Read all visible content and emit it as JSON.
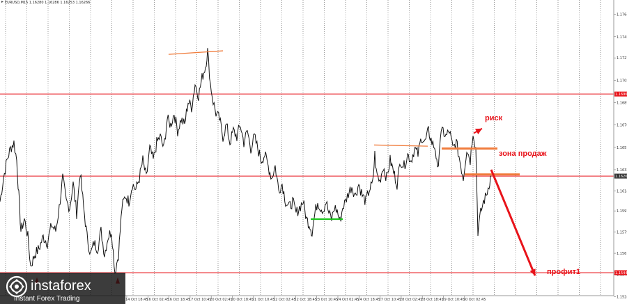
{
  "header": "EURUSD,M15  1.16280 1.16286 1.16253 1.16266",
  "chart_data": {
    "type": "line",
    "title": "",
    "symbol": "EURUSD,M15",
    "ohlc": [
      "1.16280",
      "1.16286",
      "1.16253",
      "1.16266"
    ],
    "ylim": [
      1.1525,
      1.1775
    ],
    "y_ticks": [
      "1.1764",
      "1.1745",
      "1.1727",
      "1.1708",
      "1.1689",
      "1.1670",
      "1.1651",
      "1.1632",
      "1.1614",
      "1.1597",
      "1.1579",
      "1.1561",
      "1.1543",
      "1.1524"
    ],
    "x_tick_labels": [
      "14 Oct 18:45",
      "16 Oct 02:45",
      "16 Oct 18:45",
      "17 Oct 10:45",
      "20 Oct 02:45",
      "20 Oct 18:45",
      "21 Oct 10:45",
      "22 Oct 02:45",
      "22 Oct 18:45",
      "23 Oct 10:45",
      "24 Oct 02:45",
      "24 Oct 18:45",
      "27 Oct 10:45",
      "28 Oct 02:45",
      "28 Oct 18:45",
      "29 Oct 10:45",
      "30 Oct 02:45"
    ],
    "price_tags": [
      {
        "label": "1.16963",
        "value": 1.16963,
        "kind": "level",
        "color": "#e8131a"
      },
      {
        "label": "1.16266",
        "value": 1.16266,
        "kind": "current",
        "color": "#333333"
      },
      {
        "label": "1.15445",
        "value": 1.15445,
        "kind": "level",
        "color": "#e8131a"
      }
    ],
    "horizontal_levels": [
      {
        "value": 1.16963,
        "color": "#e8131a"
      },
      {
        "value": 1.16266,
        "color": "#e8131a"
      },
      {
        "value": 1.15445,
        "color": "#e8131a"
      }
    ],
    "series": [
      {
        "color": "#111111",
        "points": [
          [
            0,
            1.1605
          ],
          [
            5,
            1.1625
          ],
          [
            10,
            1.164
          ],
          [
            15,
            1.165
          ],
          [
            20,
            1.1655
          ],
          [
            24,
            1.164
          ],
          [
            27,
            1.161
          ],
          [
            30,
            1.158
          ],
          [
            35,
            1.159
          ],
          [
            40,
            1.1575
          ],
          [
            44,
            1.155
          ],
          [
            50,
            1.156
          ],
          [
            56,
            1.1565
          ],
          [
            62,
            1.1575
          ],
          [
            68,
            1.157
          ],
          [
            74,
            1.1585
          ],
          [
            80,
            1.158
          ],
          [
            85,
            1.16
          ],
          [
            90,
            1.1625
          ],
          [
            95,
            1.1605
          ],
          [
            100,
            1.16
          ],
          [
            105,
            1.162
          ],
          [
            110,
            1.1595
          ],
          [
            115,
            1.163
          ],
          [
            120,
            1.16
          ],
          [
            125,
            1.1575
          ],
          [
            130,
            1.156
          ],
          [
            135,
            1.157
          ],
          [
            140,
            1.1565
          ],
          [
            145,
            1.158
          ],
          [
            150,
            1.156
          ],
          [
            155,
            1.1575
          ],
          [
            160,
            1.158
          ],
          [
            165,
            1.1545
          ],
          [
            170,
            1.156
          ],
          [
            175,
            1.16
          ],
          [
            180,
            1.161
          ],
          [
            185,
            1.1605
          ],
          [
            190,
            1.162
          ],
          [
            195,
            1.1615
          ],
          [
            200,
            1.1625
          ],
          [
            205,
            1.164
          ],
          [
            210,
            1.1625
          ],
          [
            215,
            1.165
          ],
          [
            220,
            1.164
          ],
          [
            225,
            1.1655
          ],
          [
            230,
            1.166
          ],
          [
            235,
            1.165
          ],
          [
            240,
            1.1675
          ],
          [
            245,
            1.167
          ],
          [
            250,
            1.168
          ],
          [
            255,
            1.1665
          ],
          [
            260,
            1.1675
          ],
          [
            265,
            1.167
          ],
          [
            270,
            1.169
          ],
          [
            275,
            1.1685
          ],
          [
            280,
            1.1705
          ],
          [
            285,
            1.1695
          ],
          [
            290,
            1.171
          ],
          [
            295,
            1.172
          ],
          [
            298,
            1.1733
          ],
          [
            302,
            1.1705
          ],
          [
            306,
            1.169
          ],
          [
            310,
            1.168
          ],
          [
            315,
            1.1675
          ],
          [
            320,
            1.166
          ],
          [
            325,
            1.167
          ],
          [
            330,
            1.1655
          ],
          [
            335,
            1.1665
          ],
          [
            340,
            1.166
          ],
          [
            345,
            1.167
          ],
          [
            350,
            1.1655
          ],
          [
            355,
            1.1665
          ],
          [
            360,
            1.165
          ],
          [
            365,
            1.166
          ],
          [
            370,
            1.165
          ],
          [
            375,
            1.164
          ],
          [
            380,
            1.1645
          ],
          [
            385,
            1.1635
          ],
          [
            390,
            1.1625
          ],
          [
            395,
            1.1635
          ],
          [
            400,
            1.1615
          ],
          [
            405,
            1.162
          ],
          [
            410,
            1.1605
          ],
          [
            415,
            1.16
          ],
          [
            420,
            1.1605
          ],
          [
            425,
            1.1595
          ],
          [
            430,
            1.16
          ],
          [
            435,
            1.1605
          ],
          [
            440,
            1.159
          ],
          [
            445,
            1.1585
          ],
          [
            448,
            1.1578
          ],
          [
            452,
            1.1595
          ],
          [
            456,
            1.1605
          ],
          [
            460,
            1.16
          ],
          [
            464,
            1.1598
          ],
          [
            468,
            1.1605
          ],
          [
            472,
            1.1595
          ],
          [
            476,
            1.159
          ],
          [
            480,
            1.16
          ],
          [
            484,
            1.1597
          ],
          [
            488,
            1.1588
          ],
          [
            492,
            1.16
          ],
          [
            496,
            1.1605
          ],
          [
            500,
            1.1612
          ],
          [
            505,
            1.1618
          ],
          [
            510,
            1.161
          ],
          [
            515,
            1.162
          ],
          [
            520,
            1.161
          ],
          [
            525,
            1.1605
          ],
          [
            530,
            1.1615
          ],
          [
            535,
            1.162
          ],
          [
            538,
            1.1645
          ],
          [
            540,
            1.163
          ],
          [
            545,
            1.1622
          ],
          [
            550,
            1.1635
          ],
          [
            555,
            1.1625
          ],
          [
            560,
            1.164
          ],
          [
            565,
            1.163
          ],
          [
            570,
            1.162
          ],
          [
            575,
            1.164
          ],
          [
            580,
            1.1635
          ],
          [
            585,
            1.1645
          ],
          [
            590,
            1.164
          ],
          [
            595,
            1.165
          ],
          [
            600,
            1.1645
          ],
          [
            605,
            1.166
          ],
          [
            610,
            1.1655
          ],
          [
            615,
            1.1665
          ],
          [
            620,
            1.1655
          ],
          [
            625,
            1.165
          ],
          [
            628,
            1.163
          ],
          [
            632,
            1.166
          ],
          [
            636,
            1.1665
          ],
          [
            640,
            1.166
          ],
          [
            645,
            1.1665
          ],
          [
            650,
            1.165
          ],
          [
            655,
            1.1655
          ],
          [
            660,
            1.164
          ],
          [
            665,
            1.1625
          ],
          [
            670,
            1.165
          ],
          [
            675,
            1.164
          ],
          [
            679,
            1.1665
          ],
          [
            683,
            1.165
          ],
          [
            686,
            1.158
          ],
          [
            690,
            1.1595
          ],
          [
            694,
            1.1605
          ],
          [
            698,
            1.161
          ],
          [
            702,
            1.162
          ],
          [
            705,
            1.1627
          ]
        ]
      }
    ],
    "annotations": [
      {
        "text": "риск",
        "color": "#e8131a"
      },
      {
        "text": "зона продаж",
        "color": "#e8131a"
      },
      {
        "text": "профит1",
        "color": "#e8131a"
      }
    ],
    "drawn_segments": [
      {
        "from": [
          242,
          1.173
        ],
        "to": [
          320,
          1.1733
        ],
        "color": "#f07c3c",
        "role": "resistance"
      },
      {
        "from": [
          537,
          1.1653
        ],
        "to": [
          614,
          1.1652
        ],
        "color": "#f07c3c",
        "role": "resistance"
      },
      {
        "from": [
          634,
          1.165
        ],
        "to": [
          714,
          1.165
        ],
        "color": "#f07c3c",
        "role": "risk-level"
      },
      {
        "from": [
          667,
          1.1628
        ],
        "to": [
          746,
          1.1628
        ],
        "color": "#f07c3c",
        "role": "sell-zone"
      },
      {
        "from": [
          446,
          1.159
        ],
        "to": [
          492,
          1.159
        ],
        "color": "#1ec51e",
        "role": "support"
      }
    ],
    "arrows": [
      {
        "from": [
          680,
          1.1663
        ],
        "to": [
          692,
          1.1667
        ],
        "color": "#e8131a",
        "role": "risk"
      },
      {
        "from": [
          705,
          1.1632
        ],
        "to": [
          768,
          1.1542
        ],
        "color": "#e8131a",
        "role": "target"
      },
      {
        "at": [
          53,
          1.154
        ],
        "direction": "up",
        "color": "#e8131a"
      },
      {
        "at": [
          169,
          1.154
        ],
        "direction": "up",
        "color": "#e8131a"
      }
    ],
    "grid": "vertical dotted"
  },
  "watermark": {
    "brand": "instaforex",
    "tagline": "Instant Forex Trading"
  },
  "colors": {
    "level_red": "#e8131a",
    "drawn_orange": "#f07c3c",
    "support_green": "#1ec51e",
    "price_line": "#111111",
    "axis_bg": "#ffffff"
  }
}
